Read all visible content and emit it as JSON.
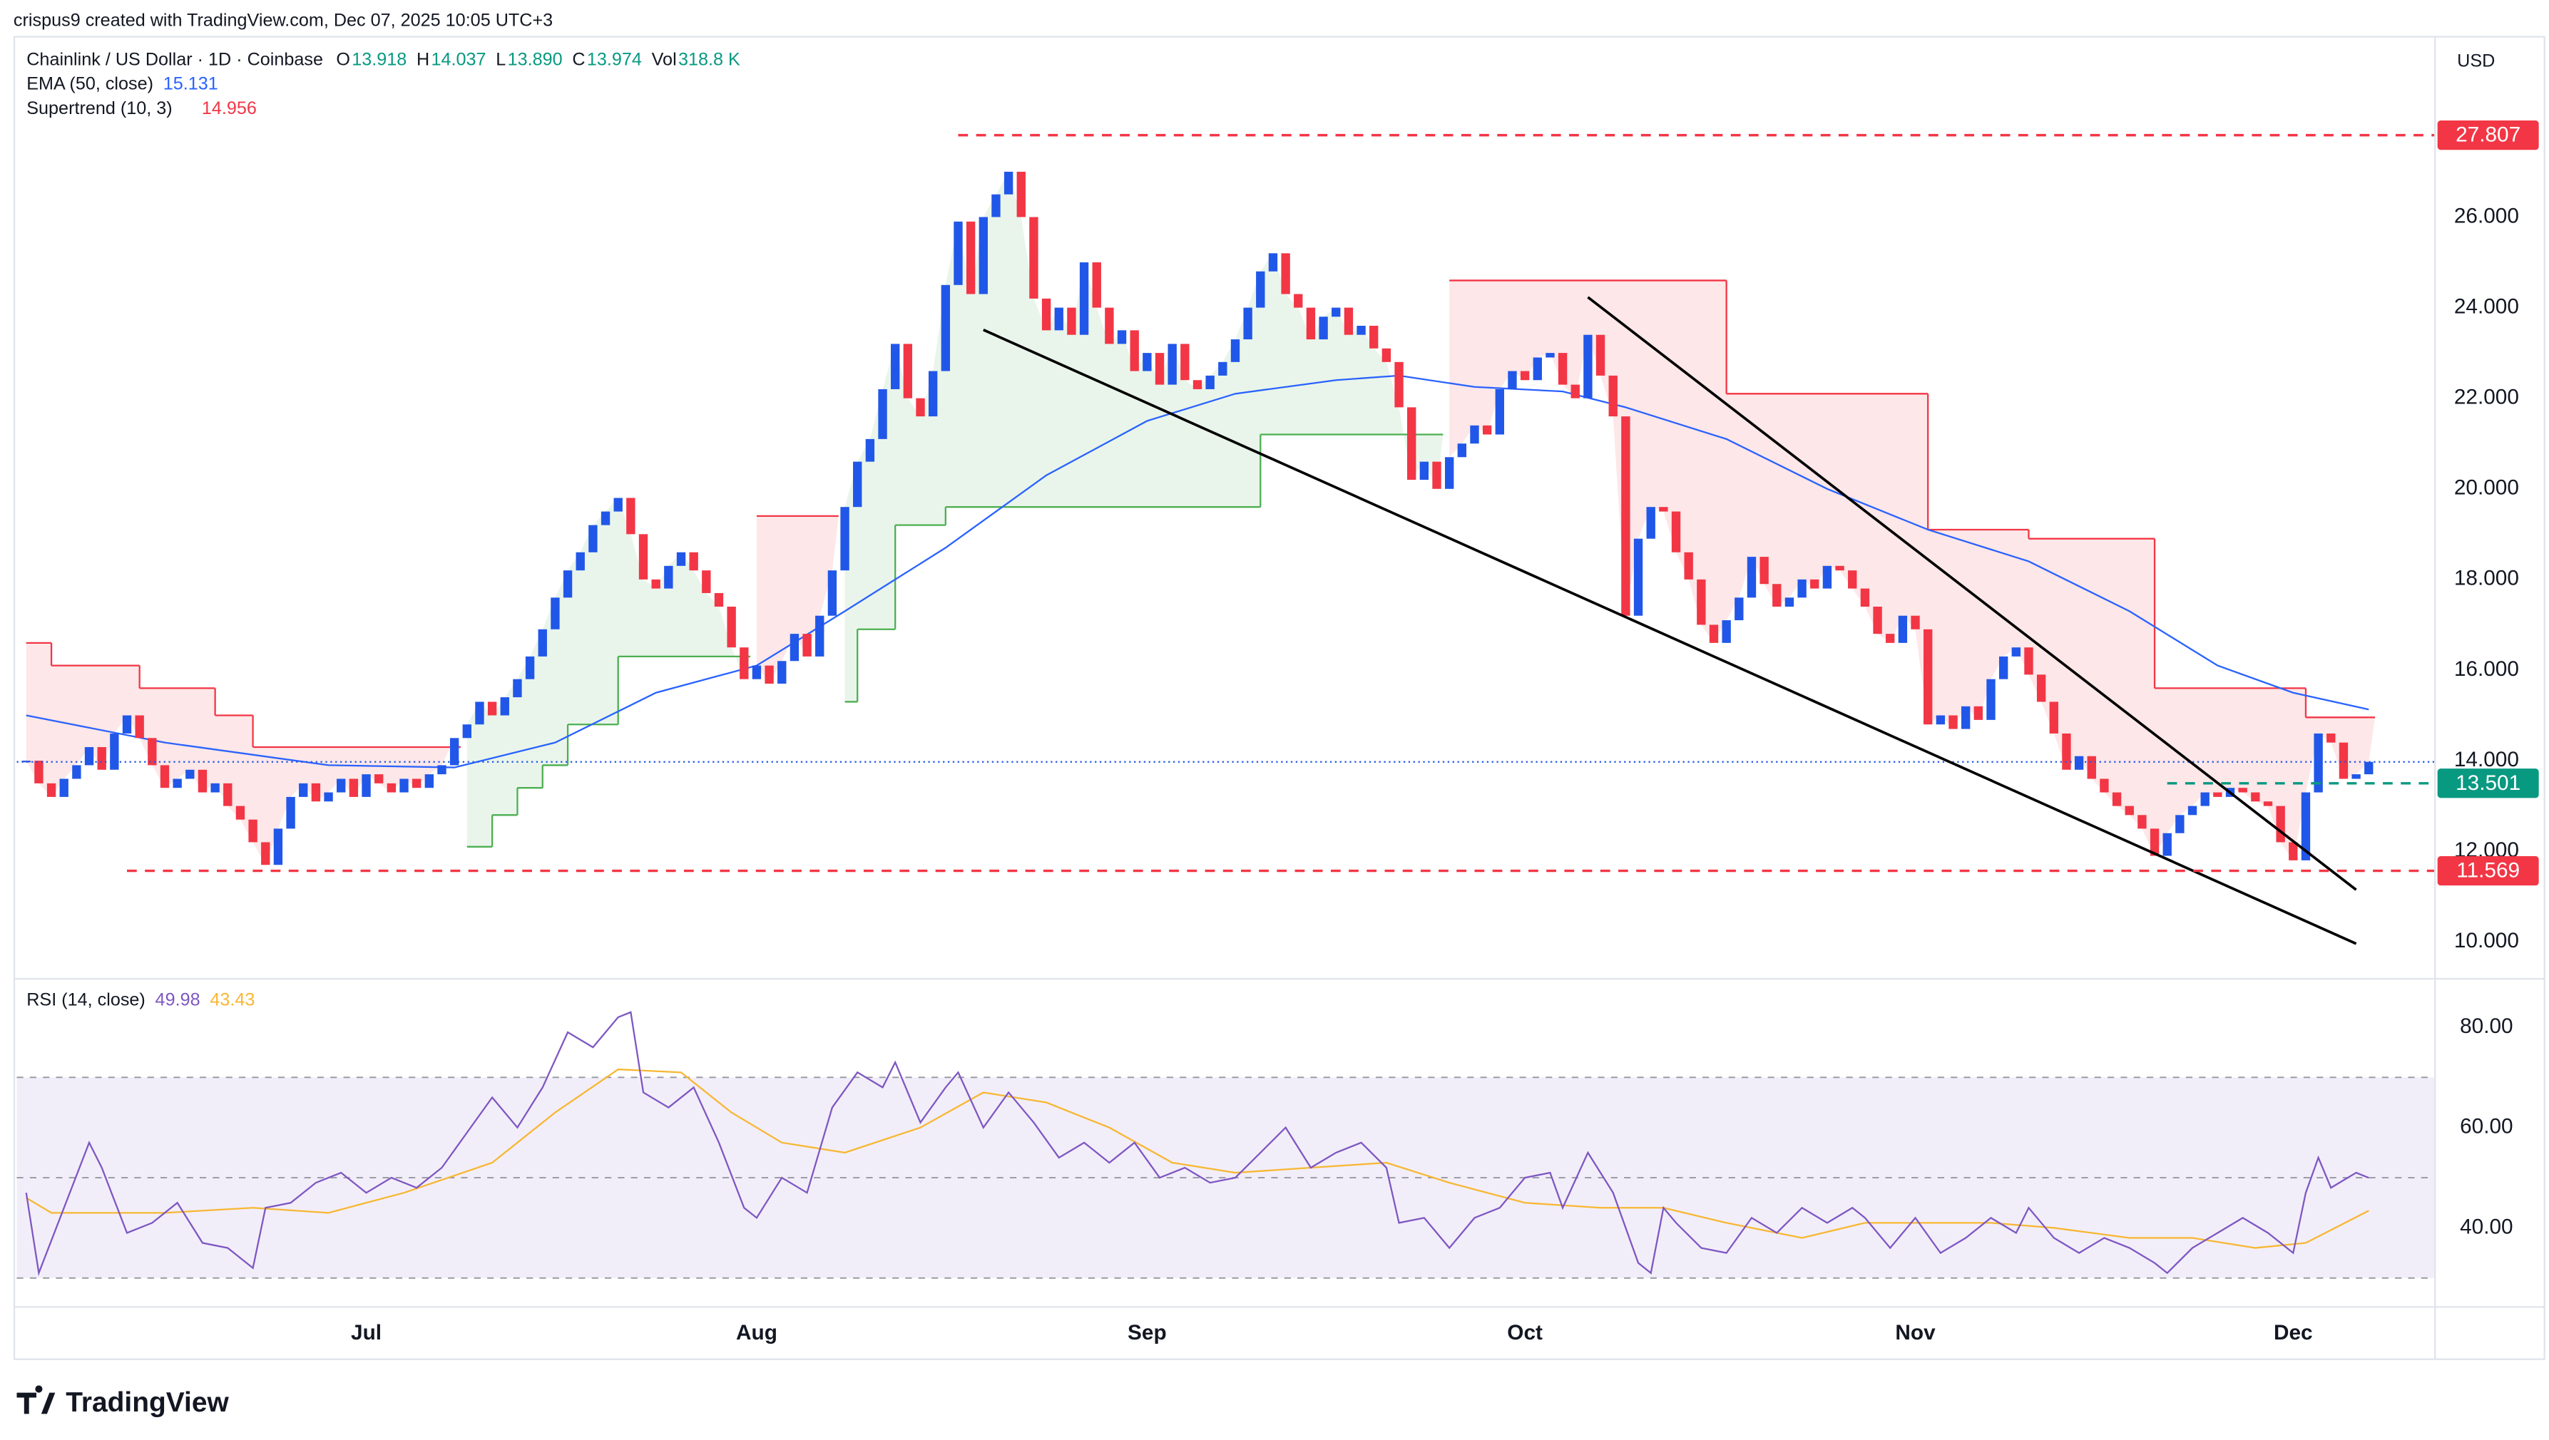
{
  "header": {
    "attribution": "crispus9 created with TradingView.com, Dec 07, 2025 10:05 UTC+3",
    "logo": "TradingView"
  },
  "chart_data": [
    {
      "type": "candlestick",
      "title": "Chainlink / US Dollar · 1D · Coinbase",
      "currency": "USD",
      "ohlc_legend": [
        {
          "label": "O",
          "value": "13.918"
        },
        {
          "label": "H",
          "value": "14.037"
        },
        {
          "label": "L",
          "value": "13.890"
        },
        {
          "label": "C",
          "value": "13.974"
        },
        {
          "label": "Vol",
          "value": "318.8 K"
        }
      ],
      "up_color": "#2157e8",
      "down_color": "#f23645",
      "x": [
        -27,
        -26,
        -25,
        -24,
        -23,
        -22,
        -21,
        -20,
        -19,
        -18,
        -17,
        -16,
        -15,
        -14,
        -13,
        -12,
        -11,
        -10,
        -9,
        -8,
        -7,
        -6,
        -5,
        -4,
        -3,
        -2,
        -1,
        0,
        1,
        2,
        3,
        4,
        5,
        6,
        7,
        8,
        9,
        10,
        11,
        12,
        13,
        14,
        15,
        16,
        17,
        18,
        19,
        20,
        21,
        22,
        23,
        24,
        25,
        26,
        27,
        28,
        29,
        30,
        31,
        32,
        33,
        34,
        35,
        36,
        37,
        38,
        39,
        40,
        41,
        42,
        43,
        44,
        45,
        46,
        47,
        48,
        49,
        50,
        51,
        52,
        53,
        54,
        55,
        56,
        57,
        58,
        59,
        60,
        61,
        62,
        63,
        64,
        65,
        66,
        67,
        68,
        69,
        70,
        71,
        72,
        73,
        74,
        75,
        76,
        77,
        78,
        79,
        80,
        81,
        82,
        83,
        84,
        85,
        86,
        87,
        88,
        89,
        90,
        91,
        92,
        93,
        94,
        95,
        96,
        97,
        98,
        99,
        100,
        101,
        102,
        103,
        104,
        105,
        106,
        107,
        108,
        109,
        110,
        111,
        112,
        113,
        114,
        115,
        116,
        117,
        118,
        119,
        120,
        121,
        122,
        123,
        124,
        125,
        126,
        127,
        128,
        129,
        130,
        131,
        132,
        133,
        134,
        135,
        136,
        137,
        138,
        139,
        140,
        141,
        142,
        143,
        144,
        145,
        146,
        147,
        148,
        149,
        150,
        151,
        152,
        153,
        154,
        155,
        156,
        157,
        158,
        159
      ],
      "values": [
        14.0,
        13.5,
        13.2,
        13.6,
        13.9,
        14.3,
        13.8,
        14.6,
        15.0,
        14.5,
        13.9,
        13.4,
        13.6,
        13.8,
        13.3,
        13.5,
        13.0,
        12.7,
        12.2,
        11.7,
        12.5,
        13.2,
        13.5,
        13.1,
        13.3,
        13.6,
        13.2,
        13.7,
        13.5,
        13.3,
        13.6,
        13.4,
        13.7,
        13.9,
        14.5,
        14.8,
        15.3,
        15.0,
        15.4,
        15.8,
        16.3,
        16.9,
        17.6,
        18.2,
        18.6,
        19.2,
        19.5,
        19.8,
        19.0,
        18.0,
        17.8,
        18.3,
        18.6,
        18.2,
        17.7,
        17.4,
        16.5,
        15.8,
        16.1,
        15.7,
        16.2,
        16.8,
        16.3,
        17.2,
        18.2,
        19.6,
        20.6,
        21.1,
        22.2,
        23.2,
        22.0,
        21.6,
        22.6,
        24.5,
        25.9,
        24.3,
        26.0,
        26.5,
        27.0,
        26.0,
        24.2,
        23.5,
        24.0,
        23.4,
        25.0,
        24.0,
        23.2,
        23.5,
        22.6,
        23.0,
        22.3,
        23.2,
        22.4,
        22.2,
        22.5,
        22.8,
        23.3,
        24.0,
        24.8,
        25.2,
        24.3,
        24.0,
        23.3,
        23.8,
        24.0,
        23.4,
        23.6,
        23.1,
        22.8,
        21.8,
        20.2,
        20.6,
        20.0,
        20.7,
        21.0,
        21.4,
        21.2,
        22.2,
        22.6,
        22.4,
        22.9,
        23.0,
        22.3,
        22.0,
        23.4,
        22.5,
        21.6,
        17.2,
        18.9,
        19.6,
        19.5,
        18.6,
        18.0,
        17.0,
        16.6,
        17.1,
        17.6,
        18.5,
        17.9,
        17.4,
        17.6,
        18.0,
        17.8,
        18.3,
        18.2,
        17.8,
        17.4,
        16.8,
        16.6,
        17.2,
        16.9,
        14.8,
        15.0,
        14.7,
        15.2,
        14.9,
        15.8,
        16.3,
        16.5,
        15.9,
        15.3,
        14.6,
        13.8,
        14.1,
        13.6,
        13.3,
        13.0,
        12.8,
        12.5,
        11.9,
        12.4,
        12.8,
        13.0,
        13.3,
        13.2,
        13.4,
        13.3,
        13.1,
        13.0,
        12.2,
        11.8,
        13.3,
        14.6,
        14.4,
        13.6,
        13.7,
        13.974
      ],
      "xlim": [
        -27.75,
        164.2
      ],
      "xticks": [
        {
          "value": 0,
          "label": "Jul"
        },
        {
          "value": 31,
          "label": "Aug"
        },
        {
          "value": 62,
          "label": "Sep"
        },
        {
          "value": 92,
          "label": "Oct"
        },
        {
          "value": 123,
          "label": "Nov"
        },
        {
          "value": 153,
          "label": "Dec"
        }
      ],
      "ylim": [
        9.24,
        29.89
      ],
      "yticks": [
        {
          "value": 10,
          "label": "10.000"
        },
        {
          "value": 12,
          "label": "12.000"
        },
        {
          "value": 14,
          "label": "14.000"
        },
        {
          "value": 16,
          "label": "16.000"
        },
        {
          "value": 18,
          "label": "18.000"
        },
        {
          "value": 20,
          "label": "20.000"
        },
        {
          "value": 22,
          "label": "22.000"
        },
        {
          "value": 24,
          "label": "24.000"
        },
        {
          "value": 26,
          "label": "26.000"
        }
      ],
      "ema": {
        "name": "EMA (50, close)",
        "color": "#2962ff",
        "x": [
          -27,
          -16,
          -3,
          7,
          15,
          23,
          31,
          38,
          46,
          54,
          62,
          69,
          77,
          82,
          88,
          95,
          100,
          108,
          116,
          124,
          132,
          140,
          147,
          153,
          159
        ],
        "values": [
          15.0,
          14.4,
          13.9,
          13.85,
          14.4,
          15.5,
          16.1,
          17.3,
          18.7,
          20.3,
          21.5,
          22.1,
          22.4,
          22.5,
          22.25,
          22.15,
          21.8,
          21.1,
          20.0,
          19.1,
          18.4,
          17.3,
          16.1,
          15.5,
          15.131
        ]
      },
      "supertrend": {
        "name": "Supertrend (10, 3)",
        "up_color": "#4caf50",
        "down_color": "#f23645",
        "segments": [
          {
            "direction": "down",
            "x": [
              -27,
              -25,
              -18,
              -12,
              -9,
              7
            ],
            "values": [
              16.6,
              16.1,
              15.6,
              15.0,
              14.3,
              14.3
            ]
          },
          {
            "direction": "up",
            "x": [
              8,
              10,
              12,
              14,
              16,
              20,
              30
            ],
            "values": [
              12.1,
              12.8,
              13.4,
              13.9,
              14.8,
              16.3,
              16.3
            ]
          },
          {
            "direction": "down",
            "x": [
              31,
              37
            ],
            "values": [
              19.4,
              19.4
            ]
          },
          {
            "direction": "up",
            "x": [
              38,
              39,
              42,
              46,
              71,
              85
            ],
            "values": [
              15.3,
              16.9,
              19.2,
              19.6,
              21.2,
              21.2
            ]
          },
          {
            "direction": "down",
            "x": [
              86,
              101,
              108,
              124,
              132,
              142,
              154,
              159
            ],
            "values": [
              24.6,
              24.6,
              22.1,
              19.1,
              18.9,
              15.6,
              14.956,
              14.956
            ]
          }
        ]
      },
      "levels": [
        {
          "value": 27.807,
          "color": "#f23645",
          "from": 47
        },
        {
          "value": 13.501,
          "color": "#089981",
          "from": 143
        },
        {
          "value": 11.569,
          "color": "#f23645",
          "from": -19
        }
      ],
      "trendlines": [
        {
          "x": [
            97,
            158
          ],
          "values": [
            24.23,
            11.15
          ]
        },
        {
          "x": [
            49,
            158
          ],
          "values": [
            23.51,
            9.96
          ]
        }
      ]
    },
    {
      "type": "line",
      "title": "RSI (14, close)",
      "xlim": [
        -27.75,
        164.2
      ],
      "ylim": [
        24.4,
        89.5
      ],
      "yticks": [
        {
          "value": 40,
          "label": "40.00"
        },
        {
          "value": 60,
          "label": "60.00"
        },
        {
          "value": 80,
          "label": "80.00"
        }
      ],
      "band": [
        30,
        70
      ],
      "midline": 50,
      "band_color": "#7e57c2",
      "series": [
        {
          "color": "#7e57c2",
          "x": [
            -27,
            -26,
            -24,
            -22,
            -21,
            -19,
            -17,
            -15,
            -13,
            -11,
            -9,
            -8,
            -6,
            -4,
            -2,
            0,
            2,
            4,
            6,
            8,
            10,
            12,
            14,
            16,
            18,
            20,
            21,
            22,
            24,
            26,
            28,
            30,
            31,
            33,
            35,
            37,
            39,
            41,
            42,
            44,
            46,
            47,
            49,
            51,
            53,
            55,
            57,
            59,
            61,
            63,
            65,
            67,
            69,
            71,
            73,
            75,
            77,
            79,
            81,
            82,
            84,
            86,
            88,
            90,
            92,
            94,
            95,
            97,
            99,
            101,
            102,
            103,
            104,
            106,
            108,
            110,
            112,
            114,
            116,
            118,
            119,
            121,
            123,
            125,
            127,
            129,
            131,
            132,
            134,
            136,
            138,
            140,
            142,
            143,
            145,
            147,
            149,
            151,
            153,
            154,
            155,
            156,
            158,
            159
          ],
          "values": [
            47,
            31,
            44,
            57,
            52,
            39,
            41,
            45,
            37,
            36,
            32,
            44,
            45,
            49,
            51,
            47,
            50,
            48,
            52,
            59,
            66,
            60,
            68,
            79,
            76,
            82,
            83,
            67,
            64,
            68,
            57,
            44,
            42,
            50,
            47,
            64,
            71,
            68,
            73,
            61,
            68,
            71,
            60,
            67,
            61,
            54,
            57,
            53,
            57,
            50,
            52,
            49,
            50,
            55,
            60,
            52,
            55,
            57,
            52,
            41,
            42,
            36,
            42,
            44,
            50,
            51,
            44,
            55,
            47,
            33,
            31,
            44,
            41,
            36,
            35,
            42,
            39,
            44,
            41,
            44,
            42,
            36,
            42,
            35,
            38,
            42,
            39,
            44,
            38,
            35,
            38,
            36,
            33,
            31,
            36,
            39,
            42,
            39,
            35,
            47,
            54,
            48,
            51,
            49.98
          ]
        },
        {
          "color": "#f7b733",
          "x": [
            -27,
            -25,
            -16,
            -9,
            -3,
            3,
            10,
            15,
            20,
            25,
            29,
            33,
            38,
            44,
            49,
            54,
            59,
            64,
            69,
            75,
            81,
            86,
            92,
            98,
            103,
            108,
            114,
            119,
            124,
            129,
            134,
            140,
            145,
            150,
            154,
            159
          ],
          "values": [
            46,
            43,
            43,
            44,
            43,
            47,
            53,
            63,
            71.6,
            71,
            63,
            57,
            55,
            60,
            67,
            65,
            60,
            53,
            51,
            52,
            53,
            49,
            45,
            44,
            44,
            41,
            38,
            41,
            41,
            41,
            40,
            38,
            38,
            36,
            37,
            43.43
          ]
        }
      ]
    }
  ]
}
